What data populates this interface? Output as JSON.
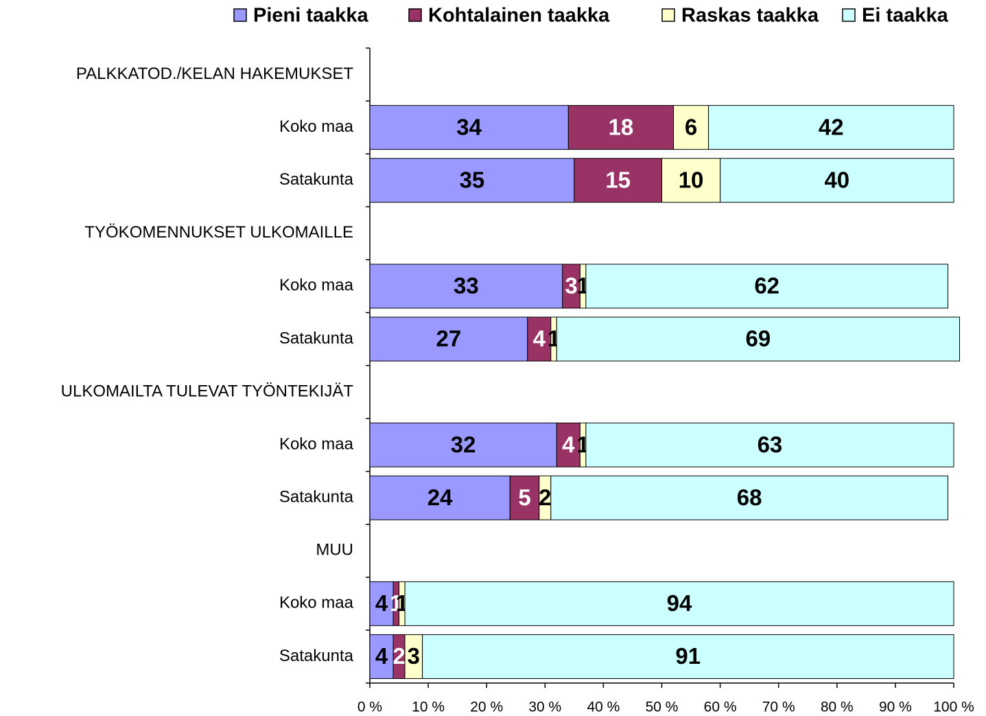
{
  "chart_data": {
    "type": "stacked_barh",
    "categories": [
      "PALKKATOD./KELAN HAKEMUKSET",
      "Koko maa",
      "Satakunta",
      "TYÖKOMENNUKSET ULKOMAILLE",
      "Koko maa",
      "Satakunta",
      "ULKOMAILTA TULEVAT TYÖNTEKIJÄT",
      "Koko maa",
      "Satakunta",
      "MUU",
      "Koko maa",
      "Satakunta"
    ],
    "series": [
      {
        "name": "Pieni taakka",
        "color": "#9999ff",
        "label_color": "#000000",
        "values": [
          null,
          34,
          35,
          null,
          33,
          27,
          null,
          32,
          24,
          null,
          4,
          4
        ]
      },
      {
        "name": "Kohtalainen taakka",
        "color": "#993366",
        "label_color": "#ffffff",
        "values": [
          null,
          18,
          15,
          null,
          3,
          4,
          null,
          4,
          5,
          null,
          1,
          2
        ]
      },
      {
        "name": "Raskas taakka",
        "color": "#ffffcc",
        "label_color": "#000000",
        "values": [
          null,
          6,
          10,
          null,
          1,
          1,
          null,
          1,
          2,
          null,
          1,
          3
        ]
      },
      {
        "name": "Ei taakka",
        "color": "#ccffff",
        "label_color": "#000000",
        "values": [
          null,
          42,
          40,
          null,
          62,
          69,
          null,
          63,
          68,
          null,
          94,
          91
        ]
      }
    ],
    "xlim": [
      0,
      100
    ],
    "xticks": [
      {
        "value": 0,
        "label": "0 %"
      },
      {
        "value": 10,
        "label": "10 %"
      },
      {
        "value": 20,
        "label": "20 %"
      },
      {
        "value": 30,
        "label": "30 %"
      },
      {
        "value": 40,
        "label": "40 %"
      },
      {
        "value": 50,
        "label": "50 %"
      },
      {
        "value": 60,
        "label": "60 %"
      },
      {
        "value": 70,
        "label": "70 %"
      },
      {
        "value": 80,
        "label": "80 %"
      },
      {
        "value": 90,
        "label": "90 %"
      },
      {
        "value": 100,
        "label": "100 %"
      }
    ],
    "legend": "top"
  }
}
